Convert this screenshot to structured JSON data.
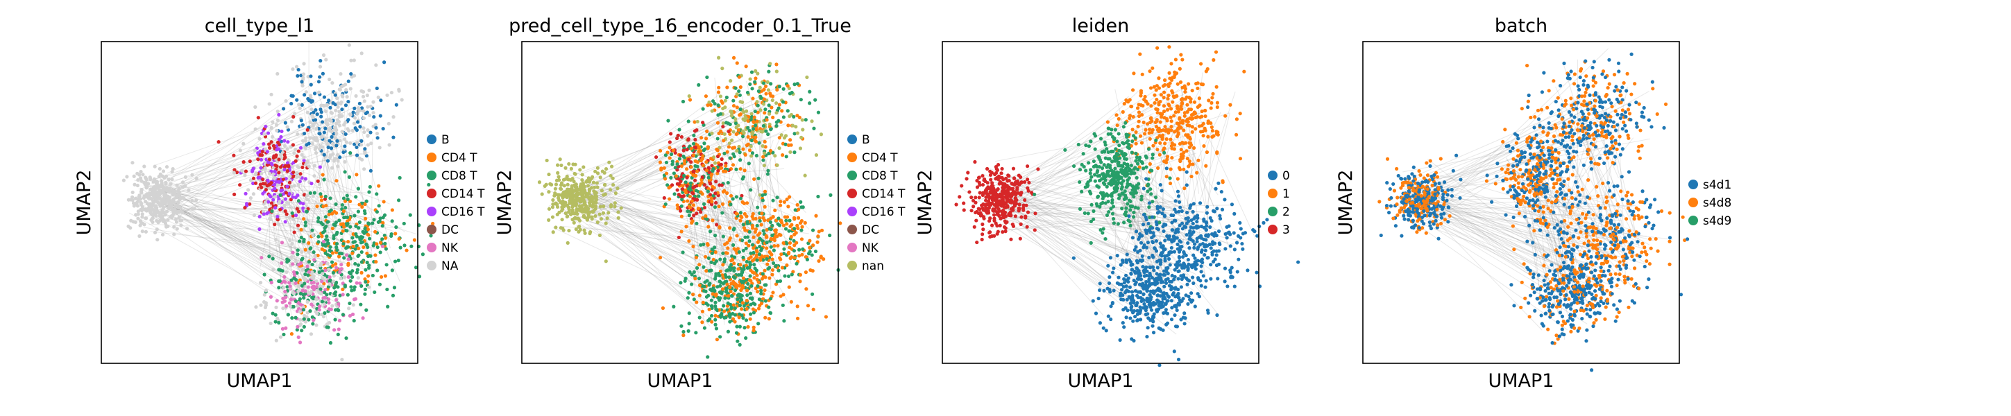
{
  "chart_data": [
    {
      "type": "scatter",
      "title": "cell_type_l1",
      "xlabel": "UMAP1",
      "ylabel": "UMAP2",
      "legend_placement": "right",
      "legend": [
        {
          "label": "B",
          "color": "#1f77b4"
        },
        {
          "label": "CD4 T",
          "color": "#ff7f0e"
        },
        {
          "label": "CD8 T",
          "color": "#279e68"
        },
        {
          "label": "CD14 T",
          "color": "#d62728"
        },
        {
          "label": "CD16 T",
          "color": "#aa40fc"
        },
        {
          "label": "DC",
          "color": "#8c564b"
        },
        {
          "label": "NK",
          "color": "#e377c2"
        },
        {
          "label": "NA",
          "color": "#d3d3d3"
        }
      ]
    },
    {
      "type": "scatter",
      "title": "pred_cell_type_16_encoder_0.1_True",
      "xlabel": "UMAP1",
      "ylabel": "UMAP2",
      "legend_placement": "right",
      "legend": [
        {
          "label": "B",
          "color": "#1f77b4"
        },
        {
          "label": "CD4 T",
          "color": "#ff7f0e"
        },
        {
          "label": "CD8 T",
          "color": "#279e68"
        },
        {
          "label": "CD14 T",
          "color": "#d62728"
        },
        {
          "label": "CD16 T",
          "color": "#aa40fc"
        },
        {
          "label": "DC",
          "color": "#8c564b"
        },
        {
          "label": "NK",
          "color": "#e377c2"
        },
        {
          "label": "nan",
          "color": "#b5bd61"
        }
      ]
    },
    {
      "type": "scatter",
      "title": "leiden",
      "xlabel": "UMAP1",
      "ylabel": "UMAP2",
      "legend_placement": "right",
      "legend": [
        {
          "label": "0",
          "color": "#1f77b4"
        },
        {
          "label": "1",
          "color": "#ff7f0e"
        },
        {
          "label": "2",
          "color": "#279e68"
        },
        {
          "label": "3",
          "color": "#d62728"
        }
      ]
    },
    {
      "type": "scatter",
      "title": "batch",
      "xlabel": "UMAP1",
      "ylabel": "UMAP2",
      "legend_placement": "right",
      "legend": [
        {
          "label": "s4d1",
          "color": "#1f77b4"
        },
        {
          "label": "s4d8",
          "color": "#ff7f0e"
        },
        {
          "label": "s4d9",
          "color": "#279e68"
        }
      ]
    }
  ]
}
